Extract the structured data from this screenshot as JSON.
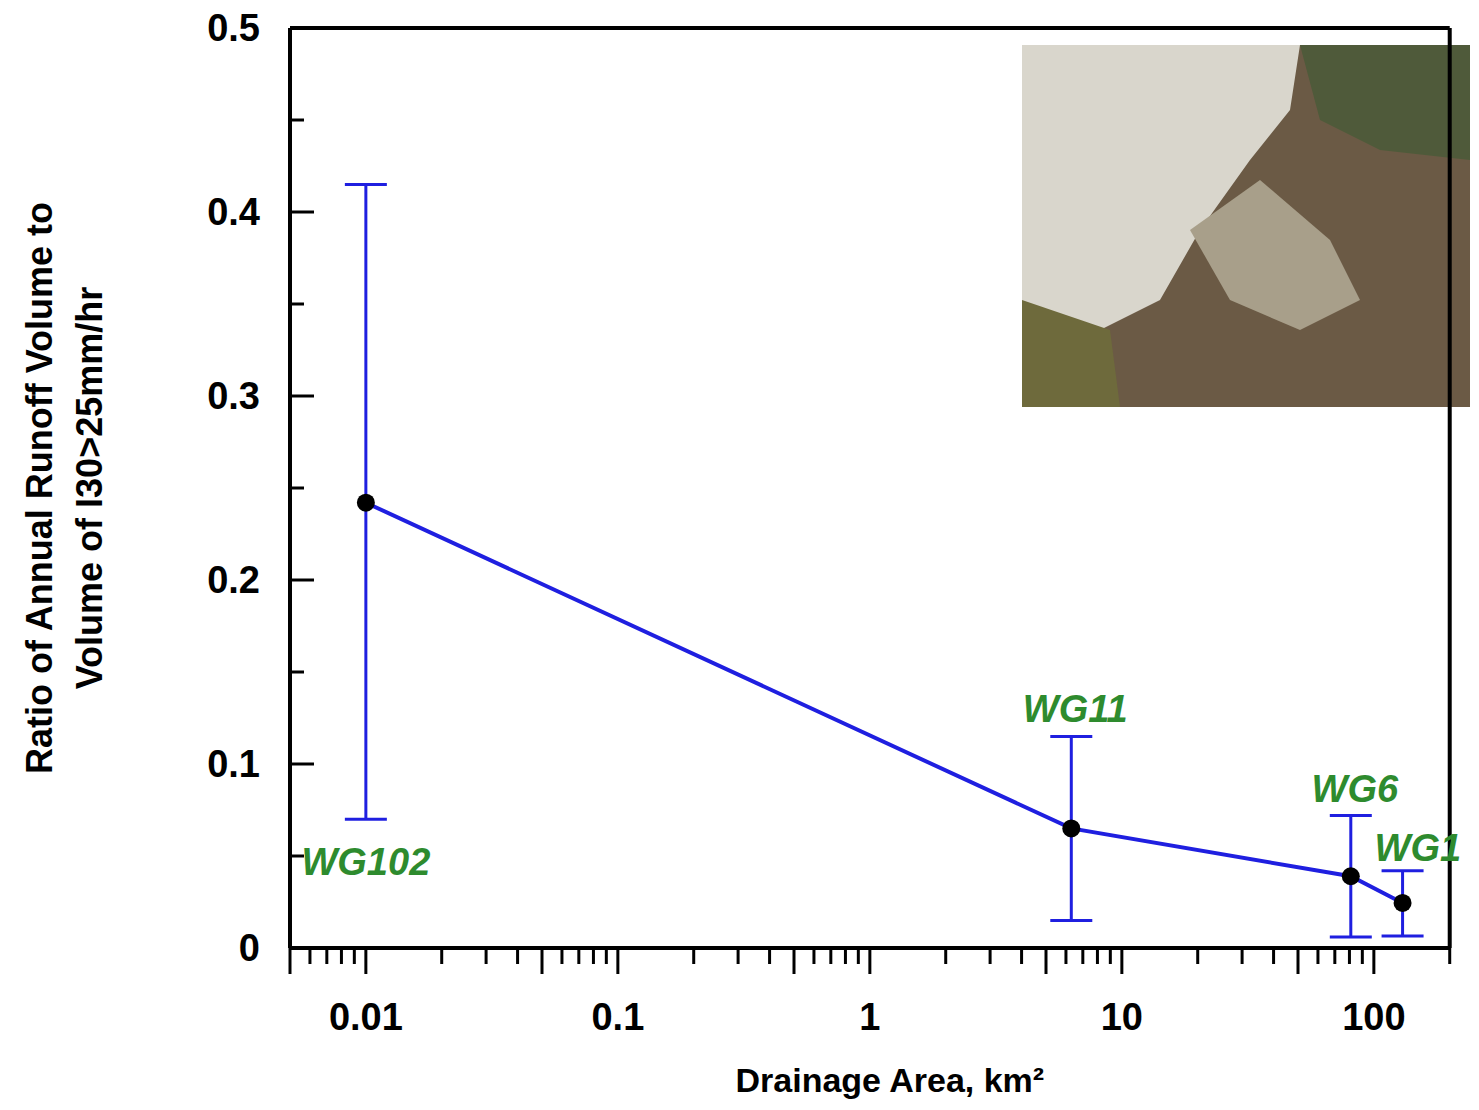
{
  "chart_data": {
    "type": "line",
    "x_label": "Drainage Area, km²",
    "y_label": [
      "Ratio of Annual Runoff Volume to",
      "Volume of I30>25mm/hr"
    ],
    "x": [
      0.01,
      6.3,
      81,
      130
    ],
    "series": [
      {
        "color": "#1f1fe0",
        "marker": "circle",
        "line_style": "solid",
        "values": [
          0.242,
          0.065,
          0.039,
          0.0245
        ],
        "error_lower": [
          0.07,
          0.015,
          0.006,
          0.0065
        ],
        "error_upper": [
          0.415,
          0.115,
          0.072,
          0.042
        ],
        "labels": [
          "WG102",
          "WG11",
          "WG6",
          "WG1"
        ]
      }
    ],
    "log": "x",
    "xlim": [
      0.005,
      200
    ],
    "xticks": [
      0.01,
      0.1,
      1,
      10,
      100
    ],
    "ylim": [
      0,
      0.5
    ],
    "yticks": [
      0,
      0.1,
      0.2,
      0.3,
      0.4,
      0.5
    ],
    "grid": false
  }
}
